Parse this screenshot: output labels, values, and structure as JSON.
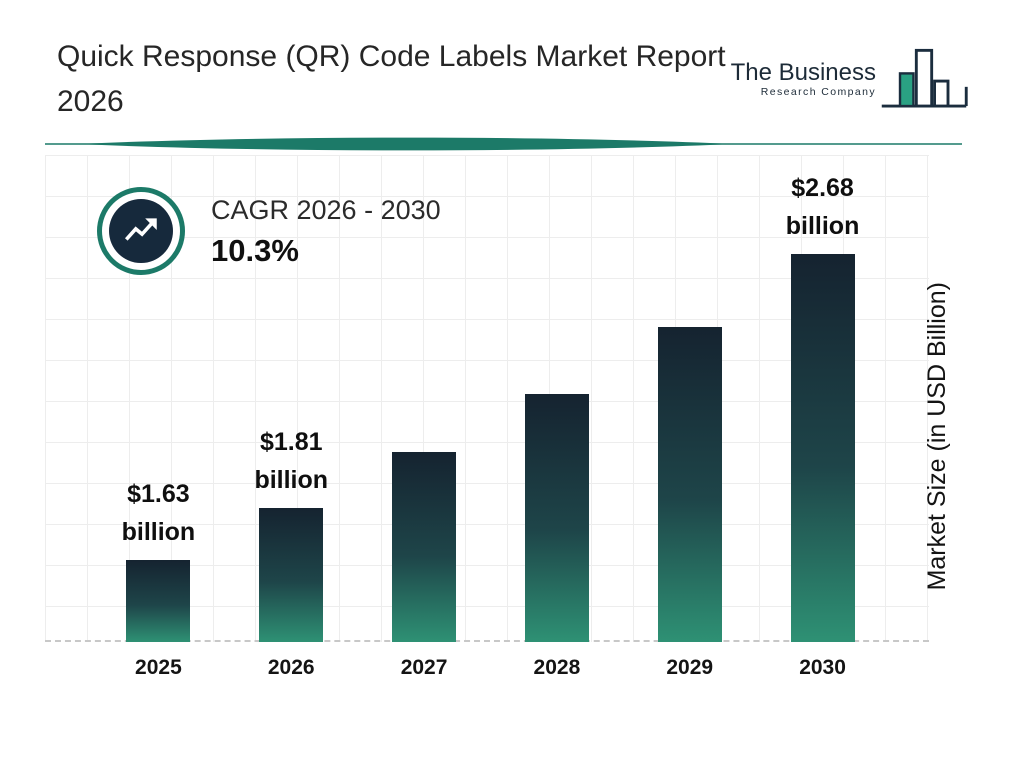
{
  "header": {
    "title": "Quick Response (QR) Code Labels Market Report 2026",
    "logo": {
      "line1": "The Business",
      "line2": "Research Company"
    }
  },
  "cagr": {
    "label": "CAGR 2026 - 2030",
    "value": "10.3%"
  },
  "chart_data": {
    "type": "bar",
    "title": "Quick Response (QR) Code Labels Market Report 2026",
    "xlabel": "",
    "ylabel": "Market Size (in USD Billion)",
    "unit": "USD Billion",
    "categories": [
      "2025",
      "2026",
      "2027",
      "2028",
      "2029",
      "2030"
    ],
    "values": [
      1.63,
      1.81,
      2.0,
      2.2,
      2.43,
      2.68
    ],
    "bar_labels": {
      "2025": [
        "$1.63",
        "billion"
      ],
      "2026": [
        "$1.81",
        "billion"
      ],
      "2030": [
        "$2.68",
        "billion"
      ]
    },
    "ylim": [
      1.35,
      2.72
    ],
    "grid": true,
    "legend": "none",
    "colors": {
      "bar_top": "#152330",
      "bar_bottom": "#2e9174",
      "accent_teal": "#1c7a68",
      "badge_navy": "#16293c"
    }
  }
}
